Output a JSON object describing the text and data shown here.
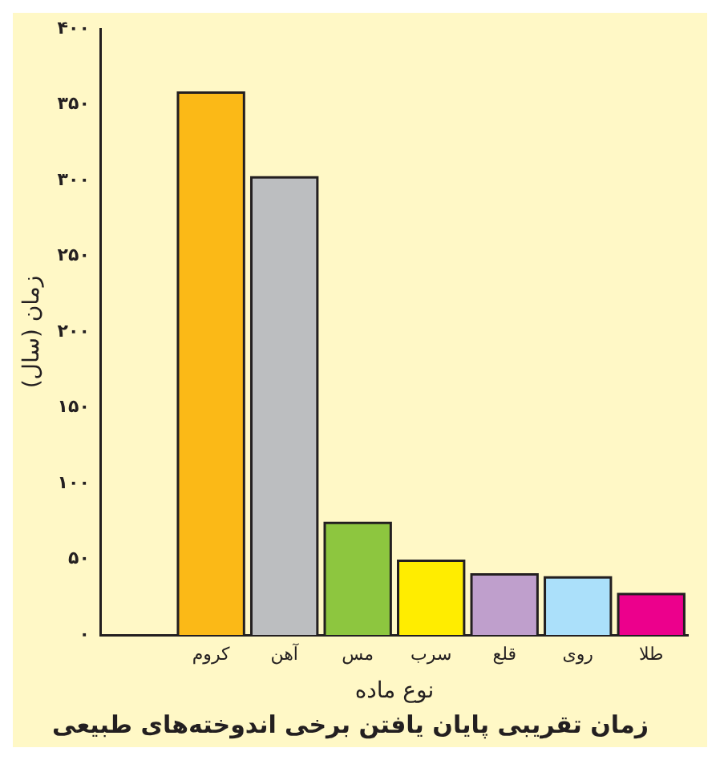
{
  "chart_data": {
    "type": "bar",
    "title": "زمان تقریبی پایان یافتن برخی اندوخته‌های طبیعی",
    "xlabel": "نوع ماده",
    "ylabel": "زمان (سال)",
    "categories": [
      "کروم",
      "آهن",
      "مس",
      "سرب",
      "قلع",
      "روی",
      "طلا"
    ],
    "values": [
      358,
      302,
      74,
      49,
      40,
      38,
      27
    ],
    "colors": [
      "#fbb917",
      "#bcbec0",
      "#8dc63f",
      "#ffed00",
      "#bf9fcc",
      "#abe0fa",
      "#ec008c"
    ],
    "ylim": [
      0,
      400
    ],
    "yticks": [
      {
        "value": 0,
        "label": "۰"
      },
      {
        "value": 50,
        "label": "۵۰"
      },
      {
        "value": 100,
        "label": "۱۰۰"
      },
      {
        "value": 150,
        "label": "۱۵۰"
      },
      {
        "value": 200,
        "label": "۲۰۰"
      },
      {
        "value": 250,
        "label": "۲۵۰"
      },
      {
        "value": 300,
        "label": "۳۰۰"
      },
      {
        "value": 350,
        "label": "۳۵۰"
      },
      {
        "value": 400,
        "label": "۴۰۰"
      }
    ],
    "grid": false,
    "legend": false
  }
}
